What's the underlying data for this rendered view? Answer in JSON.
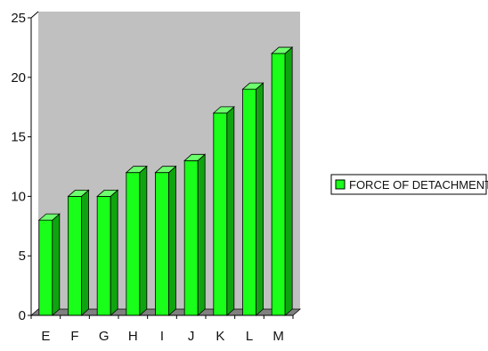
{
  "chart_data": {
    "type": "bar",
    "title": "",
    "xlabel": "",
    "ylabel": "",
    "categories": [
      "E",
      "F",
      "G",
      "H",
      "I",
      "J",
      "K",
      "L",
      "M"
    ],
    "series": [
      {
        "name": "FORCE OF DETACHMENT(g)",
        "values": [
          8,
          10,
          10,
          12,
          12,
          13,
          17,
          19,
          22
        ]
      }
    ],
    "ylim": [
      0,
      25
    ],
    "yticks": [
      0,
      5,
      10,
      15,
      20,
      25
    ],
    "grid": false,
    "legend_position": "right",
    "colors": {
      "plot_background": "#c0c0c0",
      "bar_front": "#19ff19",
      "bar_side": "#0fa40f",
      "bar_top": "#6dff6d",
      "floor": "#808080"
    }
  }
}
